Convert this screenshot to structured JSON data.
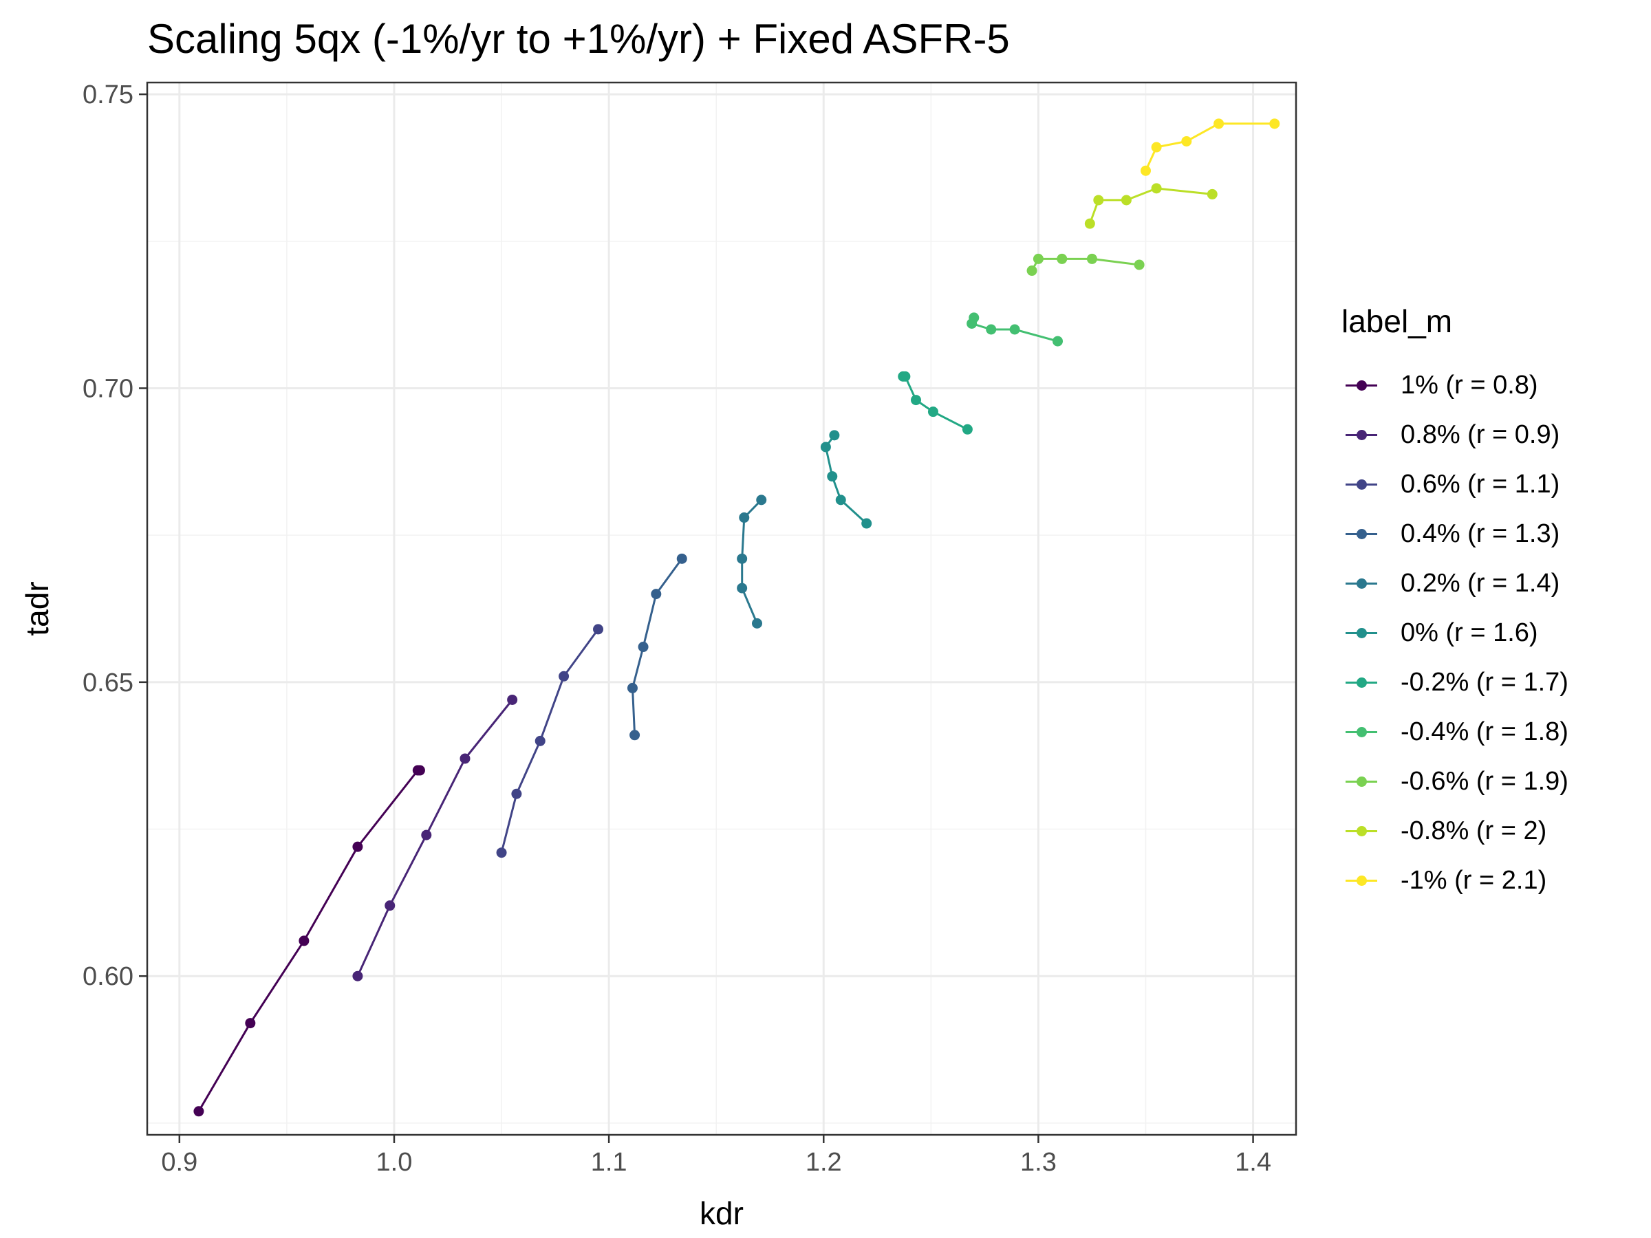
{
  "chart_data": {
    "type": "line",
    "title": "Scaling 5qx (-1%/yr to +1%/yr) + Fixed ASFR-5",
    "xlabel": "kdr",
    "ylabel": "tadr",
    "xlim": [
      0.885,
      1.42
    ],
    "ylim": [
      0.573,
      0.752
    ],
    "x_ticks": [
      0.9,
      1.0,
      1.1,
      1.2,
      1.3,
      1.4
    ],
    "x_tick_labels": [
      "0.9",
      "1.0",
      "1.1",
      "1.2",
      "1.3",
      "1.4"
    ],
    "y_ticks": [
      0.6,
      0.65,
      0.7,
      0.75
    ],
    "y_tick_labels": [
      "0.60",
      "0.65",
      "0.70",
      "0.75"
    ],
    "grid": true,
    "legend_title": "label_m",
    "legend_position": "right",
    "series": [
      {
        "name": "1% (r = 0.8)",
        "color": "#440154",
        "points": [
          [
            0.909,
            0.577
          ],
          [
            0.933,
            0.592
          ],
          [
            0.958,
            0.606
          ],
          [
            0.983,
            0.622
          ],
          [
            1.011,
            0.635
          ],
          [
            1.012,
            0.635
          ]
        ]
      },
      {
        "name": "0.8% (r = 0.9)",
        "color": "#482576",
        "points": [
          [
            0.983,
            0.6
          ],
          [
            0.998,
            0.612
          ],
          [
            1.015,
            0.624
          ],
          [
            1.033,
            0.637
          ],
          [
            1.055,
            0.647
          ]
        ]
      },
      {
        "name": "0.6% (r = 1.1)",
        "color": "#414487",
        "points": [
          [
            1.05,
            0.621
          ],
          [
            1.057,
            0.631
          ],
          [
            1.068,
            0.64
          ],
          [
            1.079,
            0.651
          ],
          [
            1.095,
            0.659
          ]
        ]
      },
      {
        "name": "0.4% (r = 1.3)",
        "color": "#35608D",
        "points": [
          [
            1.112,
            0.641
          ],
          [
            1.111,
            0.649
          ],
          [
            1.116,
            0.656
          ],
          [
            1.122,
            0.665
          ],
          [
            1.134,
            0.671
          ]
        ]
      },
      {
        "name": "0.2% (r = 1.4)",
        "color": "#2A788E",
        "points": [
          [
            1.169,
            0.66
          ],
          [
            1.162,
            0.666
          ],
          [
            1.162,
            0.671
          ],
          [
            1.163,
            0.678
          ],
          [
            1.171,
            0.681
          ]
        ]
      },
      {
        "name": "0% (r = 1.6)",
        "color": "#21908C",
        "points": [
          [
            1.22,
            0.677
          ],
          [
            1.208,
            0.681
          ],
          [
            1.204,
            0.685
          ],
          [
            1.201,
            0.69
          ],
          [
            1.205,
            0.692
          ]
        ]
      },
      {
        "name": "-0.2% (r = 1.7)",
        "color": "#22A884",
        "points": [
          [
            1.267,
            0.693
          ],
          [
            1.251,
            0.696
          ],
          [
            1.243,
            0.698
          ],
          [
            1.238,
            0.702
          ],
          [
            1.237,
            0.702
          ]
        ]
      },
      {
        "name": "-0.4% (r = 1.8)",
        "color": "#43BF71",
        "points": [
          [
            1.309,
            0.708
          ],
          [
            1.289,
            0.71
          ],
          [
            1.278,
            0.71
          ],
          [
            1.269,
            0.711
          ],
          [
            1.27,
            0.712
          ]
        ]
      },
      {
        "name": "-0.6% (r = 1.9)",
        "color": "#7AD151",
        "points": [
          [
            1.347,
            0.721
          ],
          [
            1.325,
            0.722
          ],
          [
            1.311,
            0.722
          ],
          [
            1.3,
            0.722
          ],
          [
            1.297,
            0.72
          ]
        ]
      },
      {
        "name": "-0.8% (r = 2)",
        "color": "#BBDF27",
        "points": [
          [
            1.381,
            0.733
          ],
          [
            1.355,
            0.734
          ],
          [
            1.341,
            0.732
          ],
          [
            1.328,
            0.732
          ],
          [
            1.324,
            0.728
          ]
        ]
      },
      {
        "name": "-1% (r = 2.1)",
        "color": "#FDE725",
        "points": [
          [
            1.41,
            0.745
          ],
          [
            1.384,
            0.745
          ],
          [
            1.369,
            0.742
          ],
          [
            1.355,
            0.741
          ],
          [
            1.35,
            0.737
          ]
        ]
      }
    ]
  }
}
